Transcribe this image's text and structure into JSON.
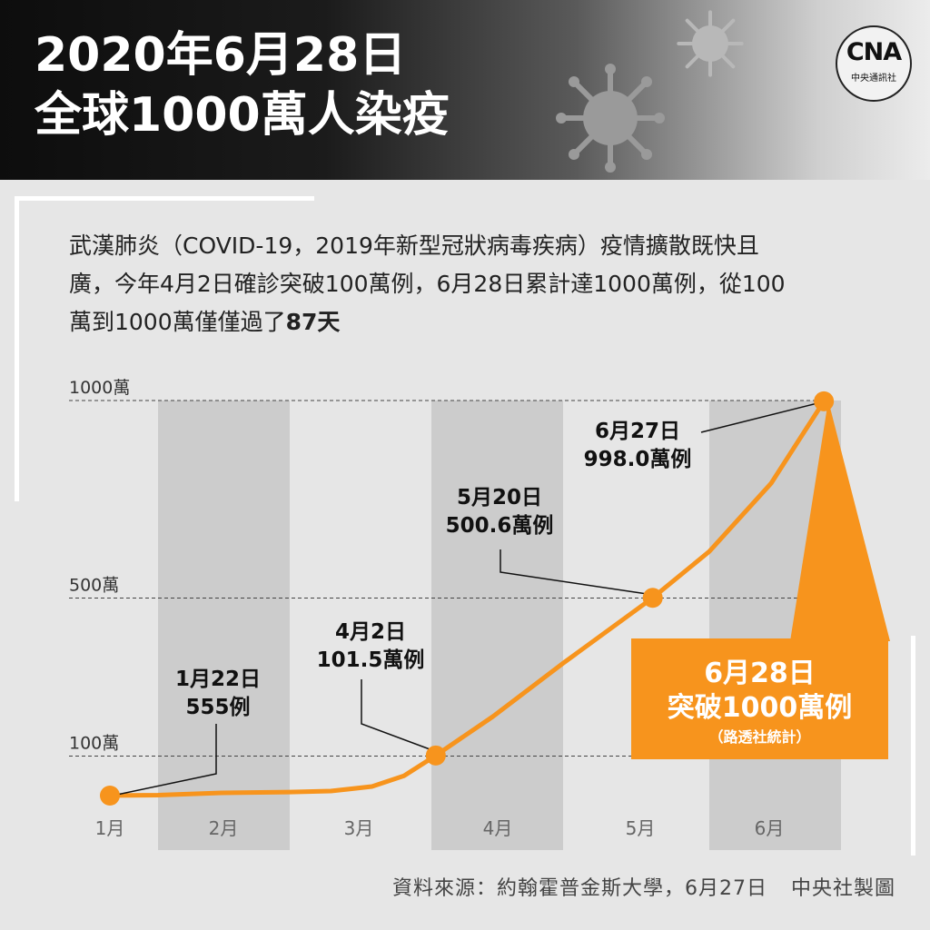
{
  "header": {
    "title_line1": "2020年6月28日",
    "title_line2": "全球1000萬人染疫",
    "logo_mark": "CNA",
    "logo_sub": "中央通訊社"
  },
  "intro": {
    "text": "武漢肺炎（COVID-19，2019年新型冠狀病毒疾病）疫情擴散既快且廣，今年4月2日確診突破100萬例，6月28日累計達1000萬例，從100萬到1000萬僅僅過了",
    "highlight": "87天"
  },
  "chart_data": {
    "type": "line",
    "title": "",
    "xlabel": "",
    "ylabel": "",
    "x_ticks": [
      "1月",
      "2月",
      "3月",
      "4月",
      "5月",
      "6月"
    ],
    "y_ticks": [
      {
        "value": 100,
        "label": "100萬"
      },
      {
        "value": 500,
        "label": "500萬"
      },
      {
        "value": 1000,
        "label": "1000萬"
      }
    ],
    "ylim": [
      0,
      1000
    ],
    "series": [
      {
        "x": [
          "2020-01-22",
          "2020-02-01",
          "2020-02-15",
          "2020-03-01",
          "2020-03-10",
          "2020-03-19",
          "2020-03-26",
          "2020-04-02",
          "2020-04-15",
          "2020-05-01",
          "2020-05-20",
          "2020-06-01",
          "2020-06-15",
          "2020-06-27",
          "2020-06-28"
        ],
        "y": [
          0.0555,
          1.2,
          6.9,
          8.8,
          11.4,
          23,
          50,
          101.5,
          200,
          335,
          500.6,
          618,
          790,
          998.0,
          1000
        ],
        "color": "#f7941d"
      }
    ],
    "highlighted_points": [
      {
        "date": "2020-01-22",
        "value": 0.0555
      },
      {
        "date": "2020-04-02",
        "value": 101.5
      },
      {
        "date": "2020-05-20",
        "value": 500.6
      },
      {
        "date": "2020-06-27",
        "value": 998.0
      }
    ],
    "annotations": [
      {
        "line1": "1月22日",
        "line2": "555例"
      },
      {
        "line1": "4月2日",
        "line2": "101.5萬例"
      },
      {
        "line1": "5月20日",
        "line2": "500.6萬例"
      },
      {
        "line1": "6月27日",
        "line2": "998.0萬例"
      }
    ],
    "callout": {
      "line1": "6月28日",
      "line2": "突破1000萬例",
      "line3": "（路透社統計）"
    },
    "grid": false,
    "shaded_month_bands": [
      "2月",
      "4月",
      "6月"
    ],
    "accent_color": "#f7941d"
  },
  "footer": {
    "source": "資料來源：約翰霍普金斯大學，6月27日",
    "credit": "中央社製圖"
  }
}
